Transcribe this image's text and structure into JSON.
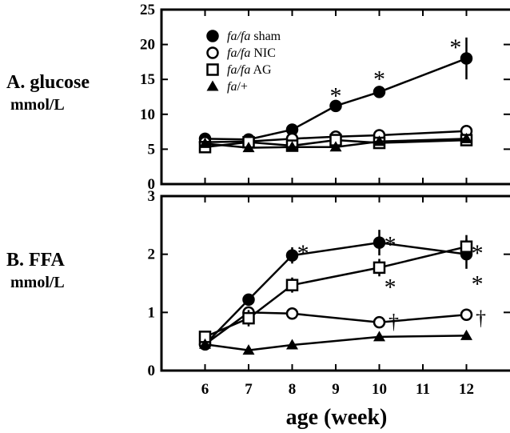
{
  "xlabel": "age (week)",
  "chart_data": [
    {
      "type": "line",
      "panel_label": "A. glucose",
      "unit_label": "mmol/L",
      "ylim": [
        0,
        25
      ],
      "yticks": [
        "0",
        "5",
        "10",
        "15",
        "20",
        "25"
      ],
      "xlim": [
        5,
        13
      ],
      "xticks": [
        "6",
        "7",
        "8",
        "9",
        "10",
        "11",
        "12"
      ],
      "legend_placement": "top-left",
      "series": [
        {
          "name": "fa/fa sham",
          "italic": "fa/fa",
          "plain": "sham",
          "marker": "filled-circle",
          "points": [
            [
              6,
              6.5
            ],
            [
              7,
              6.4
            ],
            [
              8,
              7.8
            ],
            [
              9,
              11.2
            ],
            [
              10,
              13.2
            ],
            [
              12,
              18.0
            ]
          ],
          "errors": [
            [
              12,
              3.0
            ]
          ]
        },
        {
          "name": "fa/fa NIC",
          "italic": "fa/fa",
          "plain": "NIC",
          "marker": "open-circle",
          "points": [
            [
              6,
              6.0
            ],
            [
              7,
              6.1
            ],
            [
              8,
              6.5
            ],
            [
              9,
              6.8
            ],
            [
              10,
              7.0
            ],
            [
              12,
              7.6
            ]
          ]
        },
        {
          "name": "fa/fa AG",
          "italic": "fa/fa",
          "plain": "AG",
          "marker": "open-square",
          "points": [
            [
              6,
              5.3
            ],
            [
              7,
              6.0
            ],
            [
              8,
              5.5
            ],
            [
              9,
              6.3
            ],
            [
              10,
              5.9
            ],
            [
              12,
              6.3
            ]
          ]
        },
        {
          "name": "fa/+",
          "italic": "fa",
          "plain": "/+",
          "marker": "filled-triangle",
          "points": [
            [
              6,
              5.8
            ],
            [
              7,
              5.2
            ],
            [
              8,
              5.3
            ],
            [
              9,
              5.3
            ],
            [
              10,
              6.1
            ],
            [
              12,
              6.5
            ]
          ]
        }
      ],
      "annotations": [
        {
          "text": "*",
          "x": 9,
          "y": 13.6
        },
        {
          "text": "*",
          "x": 10,
          "y": 16.0
        },
        {
          "text": "*",
          "x": 11.75,
          "y": 20.5
        }
      ]
    },
    {
      "type": "line",
      "panel_label": "B. FFA",
      "unit_label": "mmol/L",
      "ylim": [
        0,
        3
      ],
      "yticks": [
        "0",
        "1",
        "2",
        "3"
      ],
      "xlim": [
        5,
        13
      ],
      "xticks": [
        "6",
        "7",
        "8",
        "9",
        "10",
        "11",
        "12"
      ],
      "series": [
        {
          "name": "fa/fa sham",
          "marker": "filled-circle",
          "points": [
            [
              6,
              0.45
            ],
            [
              7,
              1.22
            ],
            [
              8,
              1.98
            ],
            [
              10,
              2.2
            ],
            [
              12,
              2.0
            ]
          ],
          "errors": [
            [
              8,
              0.14
            ],
            [
              10,
              0.22
            ],
            [
              12,
              0.25
            ]
          ]
        },
        {
          "name": "fa/fa NIC",
          "marker": "open-circle",
          "points": [
            [
              6,
              0.45
            ],
            [
              7,
              1.0
            ],
            [
              8,
              0.98
            ],
            [
              10,
              0.83
            ],
            [
              12,
              0.96
            ]
          ]
        },
        {
          "name": "fa/fa AG",
          "marker": "open-square",
          "points": [
            [
              6,
              0.58
            ],
            [
              7,
              0.9
            ],
            [
              8,
              1.47
            ],
            [
              10,
              1.77
            ],
            [
              12,
              2.13
            ]
          ],
          "errors": [
            [
              7,
              0.14
            ],
            [
              8,
              0.13
            ],
            [
              10,
              0.15
            ],
            [
              12,
              0.2
            ]
          ]
        },
        {
          "name": "fa/+",
          "marker": "filled-triangle",
          "points": [
            [
              6,
              0.45
            ],
            [
              7,
              0.35
            ],
            [
              8,
              0.44
            ],
            [
              10,
              0.58
            ],
            [
              12,
              0.6
            ]
          ]
        }
      ],
      "annotations": [
        {
          "text": "*",
          "x": 8.25,
          "y": 2.13,
          "cls": "sig"
        },
        {
          "text": "*",
          "x": 10.25,
          "y": 2.28,
          "cls": "sig"
        },
        {
          "text": "*",
          "x": 10.25,
          "y": 1.55,
          "cls": "sig"
        },
        {
          "text": "*",
          "x": 12.25,
          "y": 2.13,
          "cls": "sig"
        },
        {
          "text": "*",
          "x": 12.25,
          "y": 1.6,
          "cls": "sig"
        },
        {
          "text": "†",
          "x": 10.33,
          "y": 0.86,
          "cls": "dag"
        },
        {
          "text": "†",
          "x": 12.33,
          "y": 0.92,
          "cls": "dag"
        }
      ]
    }
  ]
}
